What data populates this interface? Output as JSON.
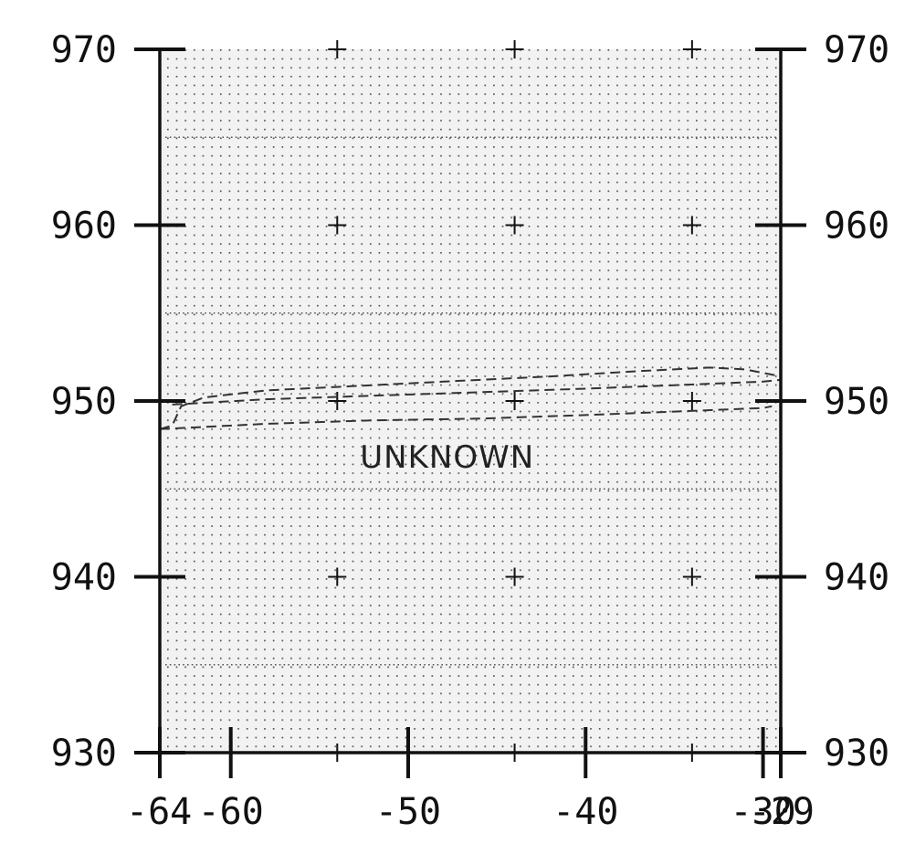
{
  "chart_data": {
    "type": "diagram",
    "title": "",
    "xlabel": "",
    "ylabel": "",
    "xlim": [
      -64,
      -29
    ],
    "ylim": [
      930,
      970
    ],
    "x_ticks": [
      {
        "value": -64,
        "label": "-64"
      },
      {
        "value": -60,
        "label": "-60"
      },
      {
        "value": -50,
        "label": "-50"
      },
      {
        "value": -40,
        "label": "-40"
      },
      {
        "value": -30,
        "label": "-30"
      },
      {
        "value": -29,
        "label": "-29"
      }
    ],
    "y_ticks": [
      {
        "value": 930,
        "label": "930"
      },
      {
        "value": 940,
        "label": "940"
      },
      {
        "value": 950,
        "label": "950"
      },
      {
        "value": 960,
        "label": "960"
      },
      {
        "value": 970,
        "label": "970"
      }
    ],
    "grid_crosses_x": [
      -54,
      -44,
      -34
    ],
    "background": "dotted",
    "region_label": {
      "text": "UNKNOWN",
      "x": -47.8,
      "y": 946.2
    },
    "curves": [
      {
        "style": "dashed",
        "points": [
          [
            -64,
            948.4
          ],
          [
            -63.3,
            948.6
          ],
          [
            -62.8,
            949.7
          ],
          [
            -61.5,
            950.2
          ],
          [
            -58,
            950.6
          ],
          [
            -54,
            950.8
          ],
          [
            -48,
            951.1
          ],
          [
            -42,
            951.4
          ],
          [
            -37,
            951.7
          ],
          [
            -33,
            951.9
          ],
          [
            -31,
            951.8
          ],
          [
            -29,
            951.4
          ]
        ]
      },
      {
        "style": "dashed",
        "points": [
          [
            -63.3,
            949.8
          ],
          [
            -58,
            950.1
          ],
          [
            -52,
            950.3
          ],
          [
            -46,
            950.5
          ],
          [
            -40,
            950.7
          ],
          [
            -35,
            950.9
          ],
          [
            -30,
            951.1
          ],
          [
            -29,
            951.2
          ]
        ]
      },
      {
        "style": "dashed",
        "points": [
          [
            -64,
            948.4
          ],
          [
            -58,
            948.7
          ],
          [
            -52,
            948.9
          ],
          [
            -46,
            949.0
          ],
          [
            -40,
            949.2
          ],
          [
            -35,
            949.4
          ],
          [
            -30,
            949.6
          ],
          [
            -29.5,
            949.7
          ]
        ]
      }
    ],
    "colors": {
      "axis": "#111111",
      "dots": "#555555",
      "curve": "#333333",
      "shade": "#f2f2f2"
    }
  }
}
